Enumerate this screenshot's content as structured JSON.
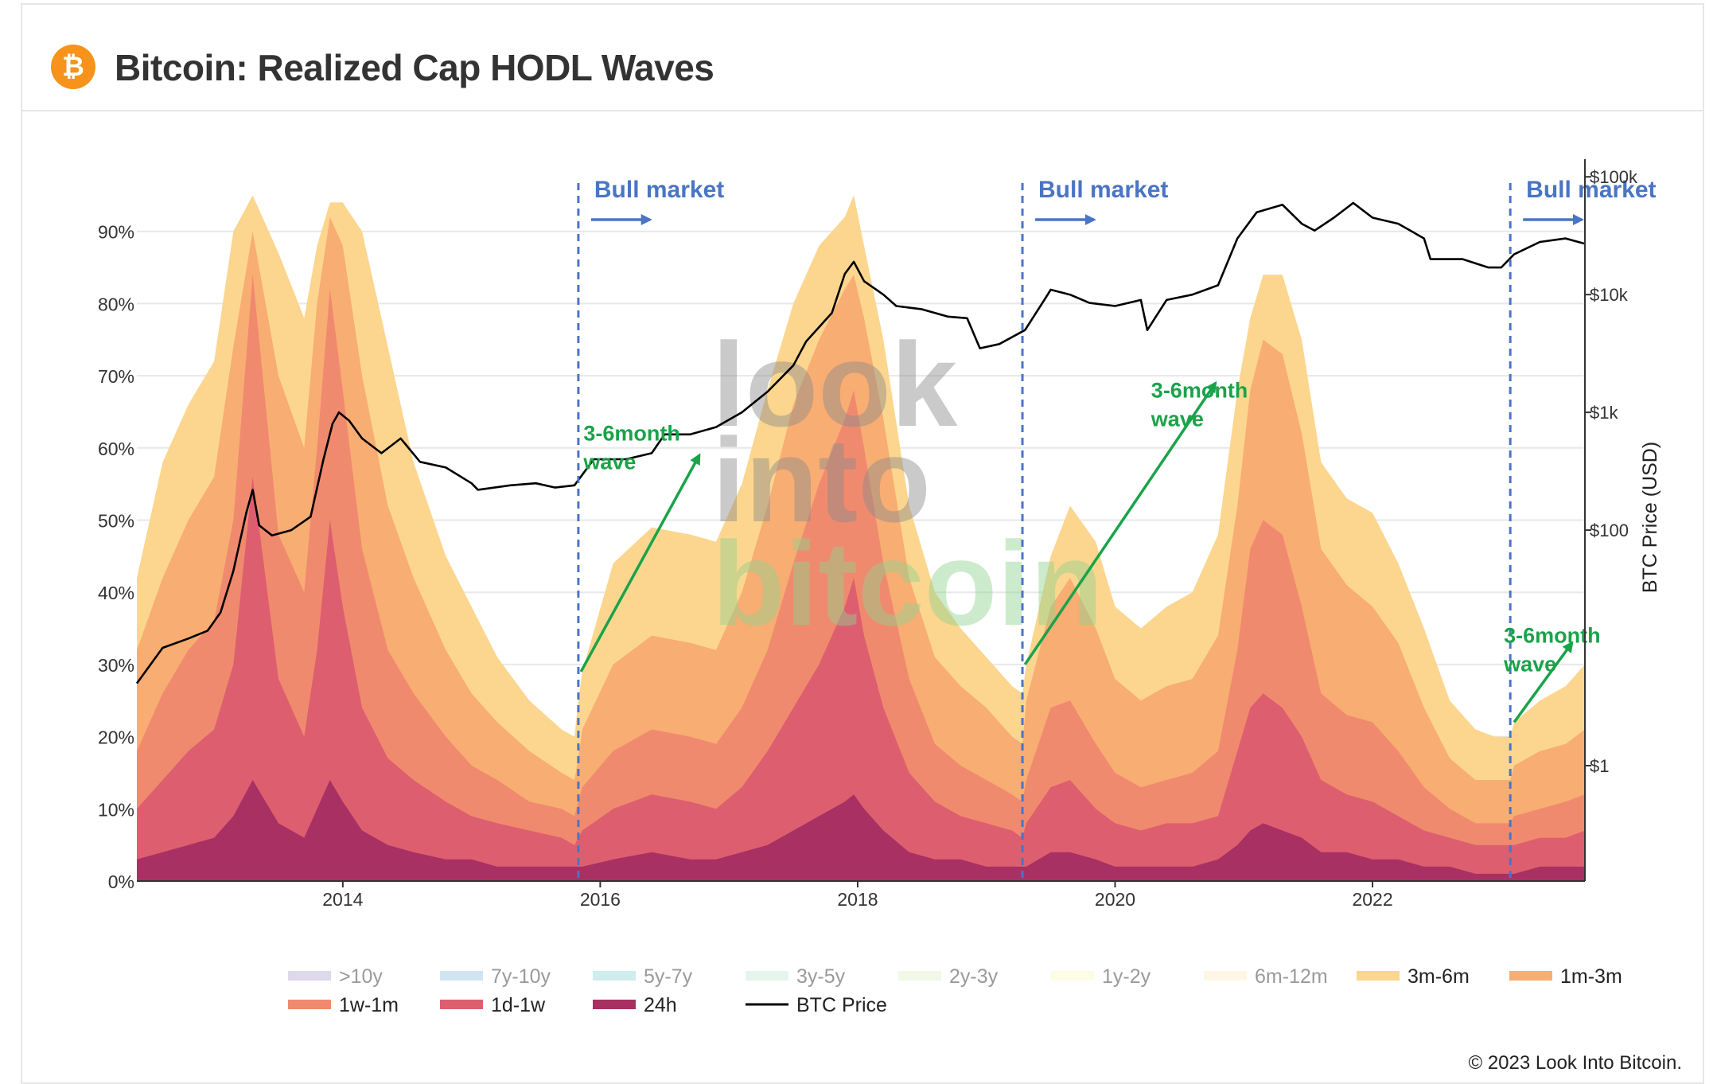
{
  "header": {
    "logo_symbol": "₿",
    "title": "Bitcoin: Realized Cap HODL Waves"
  },
  "footer": {
    "copyright": "© 2023 Look Into Bitcoin."
  },
  "watermark": {
    "lines": [
      "look",
      "into",
      "bitcoin"
    ]
  },
  "colors": {
    "gt10y": "#c3b8dc",
    "y7_10": "#a9cce6",
    "y5_7": "#a6dedd",
    "y3_5": "#cdeedd",
    "y2_3": "#e6f3d0",
    "y1_2": "#fdf8d2",
    "m6_12": "#fdf1cf",
    "m3_6": "#fcd68f",
    "m1_3": "#f8ad73",
    "w1_1m": "#f08a6e",
    "d1_1w": "#dd5f6f",
    "h24": "#a93063",
    "btc_price": "#000000",
    "annotation_blue": "#4a74c4",
    "annotation_green": "#1aa34a"
  },
  "annotations": {
    "bull_markets": [
      {
        "date": 2015.83,
        "label": "Bull market"
      },
      {
        "date": 2019.28,
        "label": "Bull market"
      },
      {
        "date": 2023.07,
        "label": "Bull market"
      }
    ],
    "waves": [
      {
        "label_line1": "3-6month",
        "label_line2": "wave",
        "from": [
          2015.85,
          29
        ],
        "to": [
          2016.77,
          59
        ]
      },
      {
        "label_line1": "3-6month",
        "label_line2": "wave",
        "from": [
          2019.3,
          30
        ],
        "to": [
          2020.78,
          69
        ]
      },
      {
        "label_line1": "3-6month",
        "label_line2": "wave",
        "from": [
          2023.1,
          22
        ],
        "to": [
          2023.55,
          33
        ]
      }
    ]
  },
  "chart_data": {
    "type": "area",
    "title": "Bitcoin: Realized Cap HODL Waves",
    "xlabel": "",
    "ylabel": "",
    "y2label": "BTC Price (USD)",
    "xlim": [
      2012.4,
      2023.65
    ],
    "ylim": [
      0,
      100
    ],
    "yticks": [
      0,
      10,
      20,
      30,
      40,
      50,
      60,
      70,
      80,
      90
    ],
    "ytick_labels": [
      "0%",
      "10%",
      "20%",
      "30%",
      "40%",
      "50%",
      "60%",
      "70%",
      "80%",
      "90%"
    ],
    "xticks": [
      2014,
      2016,
      2018,
      2020,
      2022
    ],
    "xtick_labels": [
      "2014",
      "2016",
      "2018",
      "2020",
      "2022"
    ],
    "y2_log_range": [
      -0.98,
      5.15
    ],
    "y2ticks": [
      1,
      100,
      1000,
      10000,
      100000
    ],
    "y2tick_labels": [
      "$1",
      "$100",
      "$1k",
      "$10k",
      "$100k"
    ],
    "y2_exponents": [
      0,
      2,
      3,
      4,
      5
    ],
    "legend": {
      "position": "bottom",
      "rows": [
        [
          {
            "label": ">10y",
            "key": "gt10y",
            "active": false
          },
          {
            "label": "7y-10y",
            "key": "y7_10",
            "active": false
          },
          {
            "label": "5y-7y",
            "key": "y5_7",
            "active": false
          },
          {
            "label": "3y-5y",
            "key": "y3_5",
            "active": false
          },
          {
            "label": "2y-3y",
            "key": "y2_3",
            "active": false
          },
          {
            "label": "1y-2y",
            "key": "y1_2",
            "active": false
          },
          {
            "label": "6m-12m",
            "key": "m6_12",
            "active": false
          },
          {
            "label": "3m-6m",
            "key": "m3_6",
            "active": true
          },
          {
            "label": "1m-3m",
            "key": "m1_3",
            "active": true
          }
        ],
        [
          {
            "label": "1w-1m",
            "key": "w1_1m",
            "active": true
          },
          {
            "label": "1d-1w",
            "key": "d1_1w",
            "active": true
          },
          {
            "label": "24h",
            "key": "h24",
            "active": true
          },
          {
            "label": "BTC Price",
            "key": "btc_price",
            "active": true,
            "line": true
          }
        ]
      ]
    },
    "x": [
      2012.4,
      2012.6,
      2012.8,
      2013.0,
      2013.15,
      2013.3,
      2013.5,
      2013.7,
      2013.8,
      2013.9,
      2014.0,
      2014.15,
      2014.35,
      2014.55,
      2014.8,
      2015.0,
      2015.2,
      2015.45,
      2015.7,
      2015.8,
      2015.83,
      2015.86,
      2016.1,
      2016.4,
      2016.7,
      2016.9,
      2017.1,
      2017.3,
      2017.5,
      2017.7,
      2017.9,
      2017.97,
      2018.05,
      2018.2,
      2018.4,
      2018.6,
      2018.8,
      2019.0,
      2019.2,
      2019.28,
      2019.31,
      2019.5,
      2019.65,
      2019.85,
      2020.0,
      2020.2,
      2020.4,
      2020.6,
      2020.8,
      2020.95,
      2021.05,
      2021.15,
      2021.3,
      2021.45,
      2021.6,
      2021.8,
      2022.0,
      2022.2,
      2022.4,
      2022.6,
      2022.8,
      2022.95,
      2023.07,
      2023.1,
      2023.3,
      2023.5,
      2023.65
    ],
    "series": [
      {
        "name": "3m-6m",
        "key": "m3_6",
        "values": [
          42,
          58,
          66,
          72,
          90,
          95,
          87,
          78,
          88,
          94,
          94,
          90,
          74,
          58,
          45,
          38,
          31,
          25,
          21,
          20,
          25,
          29,
          44,
          49,
          48,
          47,
          55,
          68,
          80,
          88,
          92,
          95,
          88,
          75,
          52,
          40,
          35,
          31,
          27,
          26,
          30,
          45,
          52,
          47,
          38,
          35,
          38,
          40,
          48,
          68,
          78,
          84,
          84,
          75,
          58,
          53,
          51,
          44,
          35,
          25,
          21,
          20,
          20,
          22,
          25,
          27,
          30
        ]
      },
      {
        "name": "1m-3m",
        "key": "m1_3",
        "values": [
          32,
          42,
          50,
          56,
          74,
          90,
          70,
          60,
          80,
          92,
          88,
          70,
          52,
          42,
          32,
          26,
          22,
          18,
          15,
          14,
          17,
          21,
          30,
          34,
          33,
          32,
          40,
          52,
          66,
          75,
          82,
          84,
          78,
          64,
          42,
          31,
          27,
          24,
          20,
          19,
          25,
          38,
          42,
          35,
          28,
          25,
          27,
          28,
          34,
          52,
          68,
          75,
          73,
          62,
          46,
          41,
          38,
          33,
          24,
          17,
          14,
          14,
          14,
          16,
          18,
          19,
          21
        ]
      },
      {
        "name": "1w-1m",
        "key": "w1_1m",
        "values": [
          18,
          26,
          32,
          36,
          50,
          84,
          48,
          40,
          60,
          82,
          68,
          46,
          32,
          26,
          20,
          16,
          14,
          11,
          10,
          9,
          11,
          13,
          18,
          21,
          20,
          19,
          24,
          32,
          44,
          55,
          64,
          68,
          60,
          44,
          28,
          19,
          16,
          14,
          12,
          11,
          14,
          24,
          25,
          19,
          15,
          13,
          14,
          15,
          18,
          32,
          46,
          50,
          48,
          38,
          26,
          23,
          22,
          18,
          13,
          10,
          8,
          8,
          8,
          9,
          10,
          11,
          12
        ]
      },
      {
        "name": "1d-1w",
        "key": "d1_1w",
        "values": [
          10,
          14,
          18,
          21,
          30,
          56,
          28,
          20,
          32,
          50,
          38,
          24,
          17,
          14,
          11,
          9,
          8,
          7,
          6,
          5,
          6,
          7,
          10,
          12,
          11,
          10,
          13,
          18,
          24,
          30,
          38,
          42,
          34,
          24,
          15,
          11,
          9,
          8,
          7,
          6,
          8,
          13,
          14,
          10,
          8,
          7,
          8,
          8,
          9,
          18,
          24,
          26,
          24,
          20,
          14,
          12,
          11,
          9,
          7,
          6,
          5,
          5,
          5,
          5,
          6,
          6,
          7
        ]
      },
      {
        "name": "24h",
        "key": "h24",
        "values": [
          3,
          4,
          5,
          6,
          9,
          14,
          8,
          6,
          10,
          14,
          11,
          7,
          5,
          4,
          3,
          3,
          2,
          2,
          2,
          2,
          2,
          2,
          3,
          4,
          3,
          3,
          4,
          5,
          7,
          9,
          11,
          12,
          10,
          7,
          4,
          3,
          3,
          2,
          2,
          2,
          2,
          4,
          4,
          3,
          2,
          2,
          2,
          2,
          3,
          5,
          7,
          8,
          7,
          6,
          4,
          4,
          3,
          3,
          2,
          2,
          1,
          1,
          1,
          1,
          2,
          2,
          2
        ]
      }
    ],
    "btc_price": {
      "x": [
        2012.4,
        2012.6,
        2012.8,
        2012.95,
        2013.05,
        2013.15,
        2013.25,
        2013.3,
        2013.35,
        2013.45,
        2013.6,
        2013.75,
        2013.85,
        2013.92,
        2013.97,
        2014.05,
        2014.15,
        2014.3,
        2014.45,
        2014.6,
        2014.8,
        2015.0,
        2015.05,
        2015.3,
        2015.5,
        2015.65,
        2015.8,
        2015.95,
        2016.2,
        2016.4,
        2016.5,
        2016.7,
        2016.9,
        2017.1,
        2017.3,
        2017.5,
        2017.6,
        2017.8,
        2017.9,
        2017.97,
        2018.05,
        2018.2,
        2018.3,
        2018.5,
        2018.7,
        2018.85,
        2018.95,
        2019.1,
        2019.3,
        2019.45,
        2019.5,
        2019.65,
        2019.8,
        2020.0,
        2020.2,
        2020.25,
        2020.4,
        2020.6,
        2020.8,
        2020.95,
        2021.1,
        2021.3,
        2021.45,
        2021.55,
        2021.7,
        2021.85,
        2022.0,
        2022.2,
        2022.4,
        2022.45,
        2022.7,
        2022.9,
        2023.0,
        2023.1,
        2023.3,
        2023.5,
        2023.65
      ],
      "usd": [
        5,
        10,
        12,
        14,
        20,
        45,
        140,
        220,
        110,
        90,
        100,
        130,
        400,
        800,
        1000,
        850,
        600,
        450,
        600,
        380,
        340,
        250,
        220,
        240,
        250,
        230,
        240,
        400,
        400,
        450,
        650,
        650,
        750,
        1000,
        1500,
        2500,
        4000,
        7000,
        15000,
        19000,
        13000,
        10000,
        8000,
        7500,
        6500,
        6300,
        3500,
        3800,
        5000,
        9000,
        11000,
        10000,
        8500,
        8000,
        9000,
        5000,
        9000,
        10000,
        12000,
        30000,
        50000,
        58000,
        40000,
        35000,
        45000,
        60000,
        45000,
        40000,
        30000,
        20000,
        20000,
        17000,
        17000,
        22000,
        28000,
        30000,
        27000
      ]
    }
  }
}
